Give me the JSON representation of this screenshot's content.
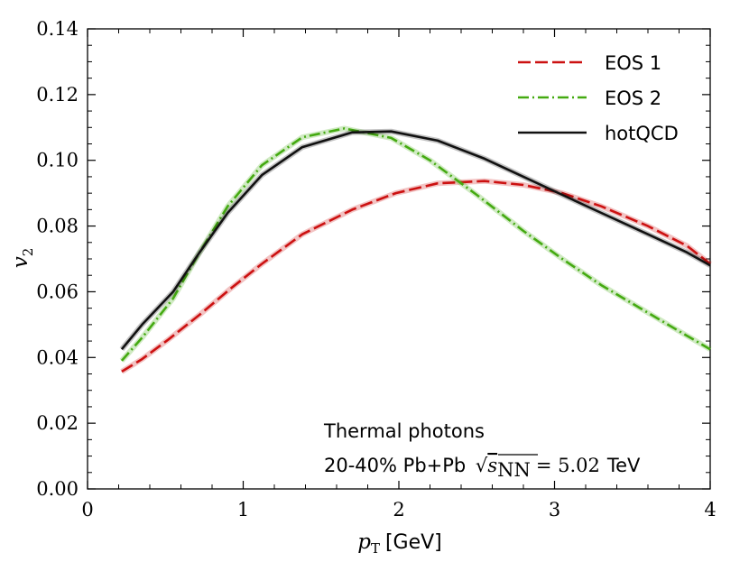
{
  "chart_data": {
    "type": "line",
    "title": "",
    "xlabel": {
      "symbol": "p",
      "subscript": "T",
      "unit": "[GeV]"
    },
    "ylabel": {
      "symbol": "v",
      "subscript": "2"
    },
    "xlim": [
      0,
      4
    ],
    "ylim": [
      0,
      0.14
    ],
    "x_ticks": [
      0,
      1,
      2,
      3,
      4
    ],
    "x_tick_labels": [
      "0",
      "1",
      "2",
      "3",
      "4"
    ],
    "y_ticks": [
      0,
      0.02,
      0.04,
      0.06,
      0.08,
      0.1,
      0.12,
      0.14
    ],
    "y_tick_labels": [
      "0.00",
      "0.02",
      "0.04",
      "0.06",
      "0.08",
      "0.10",
      "0.12",
      "0.14"
    ],
    "grid": false,
    "legend_position": "top-right",
    "series": [
      {
        "name": "EOS 1",
        "color": "#cc1111",
        "style": "dashed",
        "x": [
          0.22,
          0.35,
          0.52,
          0.72,
          0.92,
          1.12,
          1.38,
          1.7,
          1.98,
          2.25,
          2.55,
          2.8,
          3.05,
          3.3,
          3.6,
          3.85,
          4.0
        ],
        "y": [
          0.0357,
          0.0395,
          0.0455,
          0.053,
          0.061,
          0.0685,
          0.0775,
          0.085,
          0.09,
          0.093,
          0.0937,
          0.0925,
          0.09,
          0.086,
          0.08,
          0.074,
          0.0685
        ]
      },
      {
        "name": "EOS 2",
        "color": "#44aa11",
        "style": "dashdot",
        "x": [
          0.22,
          0.35,
          0.55,
          0.72,
          0.9,
          1.12,
          1.38,
          1.65,
          1.95,
          2.2,
          2.5,
          2.8,
          3.05,
          3.3,
          3.55,
          3.8,
          4.0
        ],
        "y": [
          0.039,
          0.046,
          0.058,
          0.072,
          0.086,
          0.0985,
          0.107,
          0.1097,
          0.1068,
          0.1,
          0.0895,
          0.0785,
          0.07,
          0.062,
          0.055,
          0.048,
          0.0425
        ]
      },
      {
        "name": "hotQCD",
        "color": "#111111",
        "style": "solid",
        "x": [
          0.22,
          0.35,
          0.55,
          0.72,
          0.9,
          1.12,
          1.38,
          1.7,
          1.95,
          2.25,
          2.55,
          2.8,
          3.05,
          3.3,
          3.6,
          3.85,
          4.0
        ],
        "y": [
          0.0425,
          0.05,
          0.06,
          0.072,
          0.084,
          0.0955,
          0.104,
          0.1085,
          0.1088,
          0.106,
          0.1005,
          0.095,
          0.0895,
          0.084,
          0.0775,
          0.072,
          0.068
        ]
      }
    ],
    "annotations": {
      "line1": "Thermal photons",
      "line2_prefix": "20-40% Pb+Pb ",
      "sqrt_symbol": "√",
      "sqrt_s_var": "s",
      "sqrt_s_sub": "NN",
      "equals_value": "= 5.02",
      "unit": "TeV"
    }
  }
}
